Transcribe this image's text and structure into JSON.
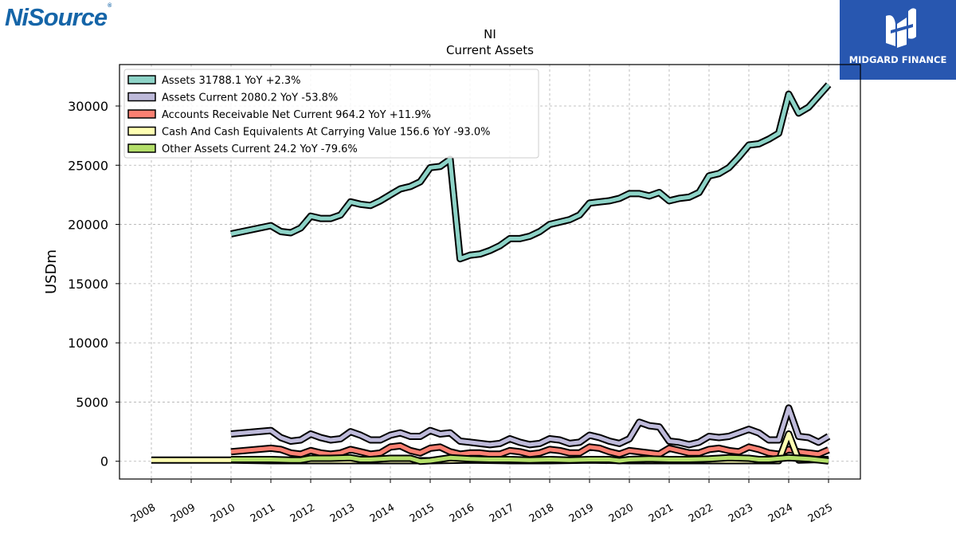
{
  "branding": {
    "company_logo": "NiSource",
    "company_logo_mark": "®",
    "sponsor_logo": "MIDGARD FINANCE"
  },
  "chart_data": {
    "type": "line",
    "title": "NI",
    "subtitle": "Current  Assets",
    "xlabel": "",
    "ylabel": "USDm",
    "ylim": [
      -1500,
      33500
    ],
    "xlim": [
      2007.2,
      2025.8
    ],
    "yticks": [
      0,
      5000,
      10000,
      15000,
      20000,
      25000,
      30000
    ],
    "xticks": [
      "2008",
      "2009",
      "2010",
      "2011",
      "2012",
      "2013",
      "2014",
      "2015",
      "2016",
      "2017",
      "2018",
      "2019",
      "2020",
      "2021",
      "2022",
      "2023",
      "2024",
      "2025"
    ],
    "grid": true,
    "legend_position": "top-left",
    "series": [
      {
        "name": "Assets",
        "legend_label": "Assets  31788.1 YoY +2.3%",
        "color": "#8dd3c7",
        "points": [
          [
            2010.0,
            19200
          ],
          [
            2011.0,
            19900
          ],
          [
            2011.25,
            19400
          ],
          [
            2011.5,
            19300
          ],
          [
            2011.75,
            19700
          ],
          [
            2012.0,
            20700
          ],
          [
            2012.25,
            20500
          ],
          [
            2012.5,
            20500
          ],
          [
            2012.75,
            20800
          ],
          [
            2013.0,
            21900
          ],
          [
            2013.25,
            21700
          ],
          [
            2013.5,
            21600
          ],
          [
            2013.75,
            22000
          ],
          [
            2014.0,
            22500
          ],
          [
            2014.25,
            23000
          ],
          [
            2014.5,
            23200
          ],
          [
            2014.75,
            23600
          ],
          [
            2015.0,
            24800
          ],
          [
            2015.25,
            24900
          ],
          [
            2015.5,
            25500
          ],
          [
            2015.75,
            17100
          ],
          [
            2016.0,
            17400
          ],
          [
            2016.25,
            17500
          ],
          [
            2016.5,
            17800
          ],
          [
            2016.75,
            18200
          ],
          [
            2017.0,
            18800
          ],
          [
            2017.25,
            18800
          ],
          [
            2017.5,
            19000
          ],
          [
            2017.75,
            19400
          ],
          [
            2018.0,
            20000
          ],
          [
            2018.25,
            20200
          ],
          [
            2018.5,
            20400
          ],
          [
            2018.75,
            20800
          ],
          [
            2019.0,
            21800
          ],
          [
            2019.25,
            21900
          ],
          [
            2019.5,
            22000
          ],
          [
            2019.75,
            22200
          ],
          [
            2020.0,
            22600
          ],
          [
            2020.25,
            22600
          ],
          [
            2020.5,
            22400
          ],
          [
            2020.75,
            22700
          ],
          [
            2021.0,
            22000
          ],
          [
            2021.25,
            22200
          ],
          [
            2021.5,
            22300
          ],
          [
            2021.75,
            22700
          ],
          [
            2022.0,
            24100
          ],
          [
            2022.25,
            24300
          ],
          [
            2022.5,
            24800
          ],
          [
            2022.75,
            25700
          ],
          [
            2023.0,
            26700
          ],
          [
            2023.25,
            26800
          ],
          [
            2023.5,
            27200
          ],
          [
            2023.75,
            27700
          ],
          [
            2024.0,
            31000
          ],
          [
            2024.25,
            29400
          ],
          [
            2024.5,
            29900
          ],
          [
            2025.0,
            31800
          ]
        ]
      },
      {
        "name": "Assets Current",
        "legend_label": "Assets Current  2080.2 YoY -53.8%",
        "color": "#bebada",
        "points": [
          [
            2010.0,
            2300
          ],
          [
            2011.0,
            2600
          ],
          [
            2011.25,
            2000
          ],
          [
            2011.5,
            1700
          ],
          [
            2011.75,
            1800
          ],
          [
            2012.0,
            2300
          ],
          [
            2012.25,
            2000
          ],
          [
            2012.5,
            1800
          ],
          [
            2012.75,
            1900
          ],
          [
            2013.0,
            2500
          ],
          [
            2013.25,
            2200
          ],
          [
            2013.5,
            1800
          ],
          [
            2013.75,
            1800
          ],
          [
            2014.0,
            2200
          ],
          [
            2014.25,
            2400
          ],
          [
            2014.5,
            2100
          ],
          [
            2014.75,
            2100
          ],
          [
            2015.0,
            2600
          ],
          [
            2015.25,
            2300
          ],
          [
            2015.5,
            2400
          ],
          [
            2015.75,
            1700
          ],
          [
            2016.0,
            1600
          ],
          [
            2016.25,
            1500
          ],
          [
            2016.5,
            1400
          ],
          [
            2016.75,
            1500
          ],
          [
            2017.0,
            1900
          ],
          [
            2017.25,
            1600
          ],
          [
            2017.5,
            1400
          ],
          [
            2017.75,
            1500
          ],
          [
            2018.0,
            1900
          ],
          [
            2018.25,
            1800
          ],
          [
            2018.5,
            1500
          ],
          [
            2018.75,
            1600
          ],
          [
            2019.0,
            2200
          ],
          [
            2019.25,
            2000
          ],
          [
            2019.5,
            1700
          ],
          [
            2019.75,
            1500
          ],
          [
            2020.0,
            1900
          ],
          [
            2020.25,
            3300
          ],
          [
            2020.5,
            3000
          ],
          [
            2020.75,
            2900
          ],
          [
            2021.0,
            1700
          ],
          [
            2021.25,
            1600
          ],
          [
            2021.5,
            1400
          ],
          [
            2021.75,
            1600
          ],
          [
            2022.0,
            2100
          ],
          [
            2022.25,
            2000
          ],
          [
            2022.5,
            2100
          ],
          [
            2022.75,
            2400
          ],
          [
            2023.0,
            2700
          ],
          [
            2023.25,
            2400
          ],
          [
            2023.5,
            1800
          ],
          [
            2023.75,
            1800
          ],
          [
            2024.0,
            4500
          ],
          [
            2024.25,
            2100
          ],
          [
            2024.5,
            2000
          ],
          [
            2024.75,
            1600
          ],
          [
            2025.0,
            2100
          ]
        ]
      },
      {
        "name": "Accounts Receivable Net Current",
        "legend_label": "Accounts Receivable Net Current  964.2 YoY +11.9%",
        "color": "#fb8072",
        "points": [
          [
            2010.0,
            800
          ],
          [
            2011.0,
            1100
          ],
          [
            2011.25,
            1000
          ],
          [
            2011.5,
            700
          ],
          [
            2011.75,
            600
          ],
          [
            2012.0,
            900
          ],
          [
            2012.25,
            700
          ],
          [
            2012.5,
            600
          ],
          [
            2012.75,
            700
          ],
          [
            2013.0,
            1000
          ],
          [
            2013.25,
            800
          ],
          [
            2013.5,
            600
          ],
          [
            2013.75,
            700
          ],
          [
            2014.0,
            1200
          ],
          [
            2014.25,
            1300
          ],
          [
            2014.5,
            900
          ],
          [
            2014.75,
            700
          ],
          [
            2015.0,
            1100
          ],
          [
            2015.25,
            1200
          ],
          [
            2015.5,
            800
          ],
          [
            2015.75,
            600
          ],
          [
            2016.0,
            700
          ],
          [
            2016.25,
            700
          ],
          [
            2016.5,
            600
          ],
          [
            2016.75,
            600
          ],
          [
            2017.0,
            900
          ],
          [
            2017.25,
            800
          ],
          [
            2017.5,
            600
          ],
          [
            2017.75,
            700
          ],
          [
            2018.0,
            1000
          ],
          [
            2018.25,
            900
          ],
          [
            2018.5,
            700
          ],
          [
            2018.75,
            700
          ],
          [
            2019.0,
            1200
          ],
          [
            2019.25,
            1100
          ],
          [
            2019.5,
            800
          ],
          [
            2019.75,
            600
          ],
          [
            2020.0,
            900
          ],
          [
            2020.25,
            800
          ],
          [
            2020.5,
            700
          ],
          [
            2020.75,
            600
          ],
          [
            2021.0,
            1100
          ],
          [
            2021.25,
            900
          ],
          [
            2021.5,
            700
          ],
          [
            2021.75,
            700
          ],
          [
            2022.0,
            1000
          ],
          [
            2022.25,
            1100
          ],
          [
            2022.5,
            900
          ],
          [
            2022.75,
            800
          ],
          [
            2023.0,
            1200
          ],
          [
            2023.25,
            1000
          ],
          [
            2023.5,
            700
          ],
          [
            2023.75,
            600
          ],
          [
            2024.0,
            1000
          ],
          [
            2024.25,
            800
          ],
          [
            2024.5,
            700
          ],
          [
            2024.75,
            600
          ],
          [
            2025.0,
            964
          ]
        ]
      },
      {
        "name": "Cash And Cash Equivalents At Carrying Value",
        "legend_label": "Cash And Cash Equivalents At Carrying Value  156.6 YoY -93.0%",
        "color": "#ffffb3",
        "points": [
          [
            2008.0,
            100
          ],
          [
            2009.0,
            100
          ],
          [
            2010.0,
            100
          ],
          [
            2011.0,
            50
          ],
          [
            2012.0,
            50
          ],
          [
            2013.0,
            50
          ],
          [
            2014.0,
            50
          ],
          [
            2015.0,
            50
          ],
          [
            2016.0,
            100
          ],
          [
            2017.0,
            50
          ],
          [
            2018.0,
            50
          ],
          [
            2019.0,
            100
          ],
          [
            2020.0,
            50
          ],
          [
            2021.0,
            50
          ],
          [
            2022.0,
            50
          ],
          [
            2023.0,
            50
          ],
          [
            2023.75,
            50
          ],
          [
            2024.0,
            2300
          ],
          [
            2024.25,
            100
          ],
          [
            2025.0,
            157
          ]
        ]
      },
      {
        "name": "Other Assets Current",
        "legend_label": "Other Assets Current  24.2 YoY -79.6%",
        "color": "#b3de69",
        "points": [
          [
            2010.0,
            150
          ],
          [
            2011.0,
            150
          ],
          [
            2011.5,
            100
          ],
          [
            2011.75,
            100
          ],
          [
            2012.0,
            250
          ],
          [
            2012.5,
            250
          ],
          [
            2013.0,
            300
          ],
          [
            2013.25,
            150
          ],
          [
            2013.5,
            150
          ],
          [
            2014.0,
            250
          ],
          [
            2014.5,
            250
          ],
          [
            2014.75,
            0
          ],
          [
            2015.0,
            50
          ],
          [
            2015.5,
            300
          ],
          [
            2016.0,
            200
          ],
          [
            2016.5,
            150
          ],
          [
            2017.0,
            150
          ],
          [
            2017.5,
            100
          ],
          [
            2018.0,
            150
          ],
          [
            2018.5,
            100
          ],
          [
            2019.0,
            150
          ],
          [
            2019.5,
            150
          ],
          [
            2019.75,
            50
          ],
          [
            2020.0,
            150
          ],
          [
            2020.5,
            200
          ],
          [
            2021.0,
            150
          ],
          [
            2021.5,
            150
          ],
          [
            2022.0,
            200
          ],
          [
            2022.5,
            300
          ],
          [
            2023.0,
            250
          ],
          [
            2023.25,
            150
          ],
          [
            2023.5,
            150
          ],
          [
            2024.0,
            300
          ],
          [
            2024.5,
            200
          ],
          [
            2025.0,
            24
          ]
        ]
      }
    ]
  }
}
